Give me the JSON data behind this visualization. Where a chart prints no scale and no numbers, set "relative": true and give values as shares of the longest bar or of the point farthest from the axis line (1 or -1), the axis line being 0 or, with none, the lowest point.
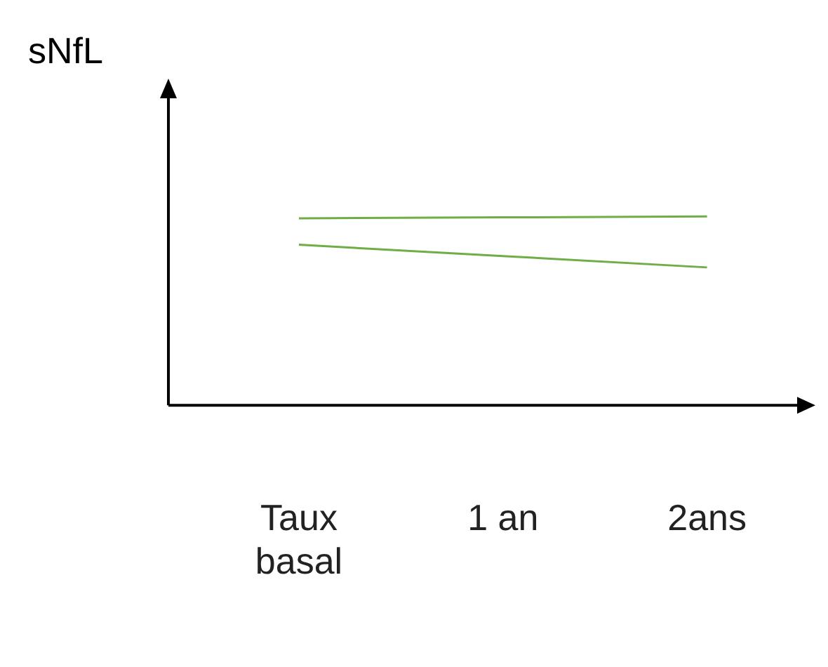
{
  "chart_data": {
    "type": "line",
    "ylabel": "sNfL",
    "relative": true,
    "categories": [
      "Taux basal",
      "1 an",
      "2ans"
    ],
    "series": [
      {
        "color": "#70ad47",
        "values": [
          0.99,
          0.995,
          1
        ]
      },
      {
        "color": "#70ad47",
        "values": [
          0.85,
          0.79,
          0.73
        ]
      }
    ],
    "legend": false,
    "grid": false,
    "marker": "none"
  }
}
